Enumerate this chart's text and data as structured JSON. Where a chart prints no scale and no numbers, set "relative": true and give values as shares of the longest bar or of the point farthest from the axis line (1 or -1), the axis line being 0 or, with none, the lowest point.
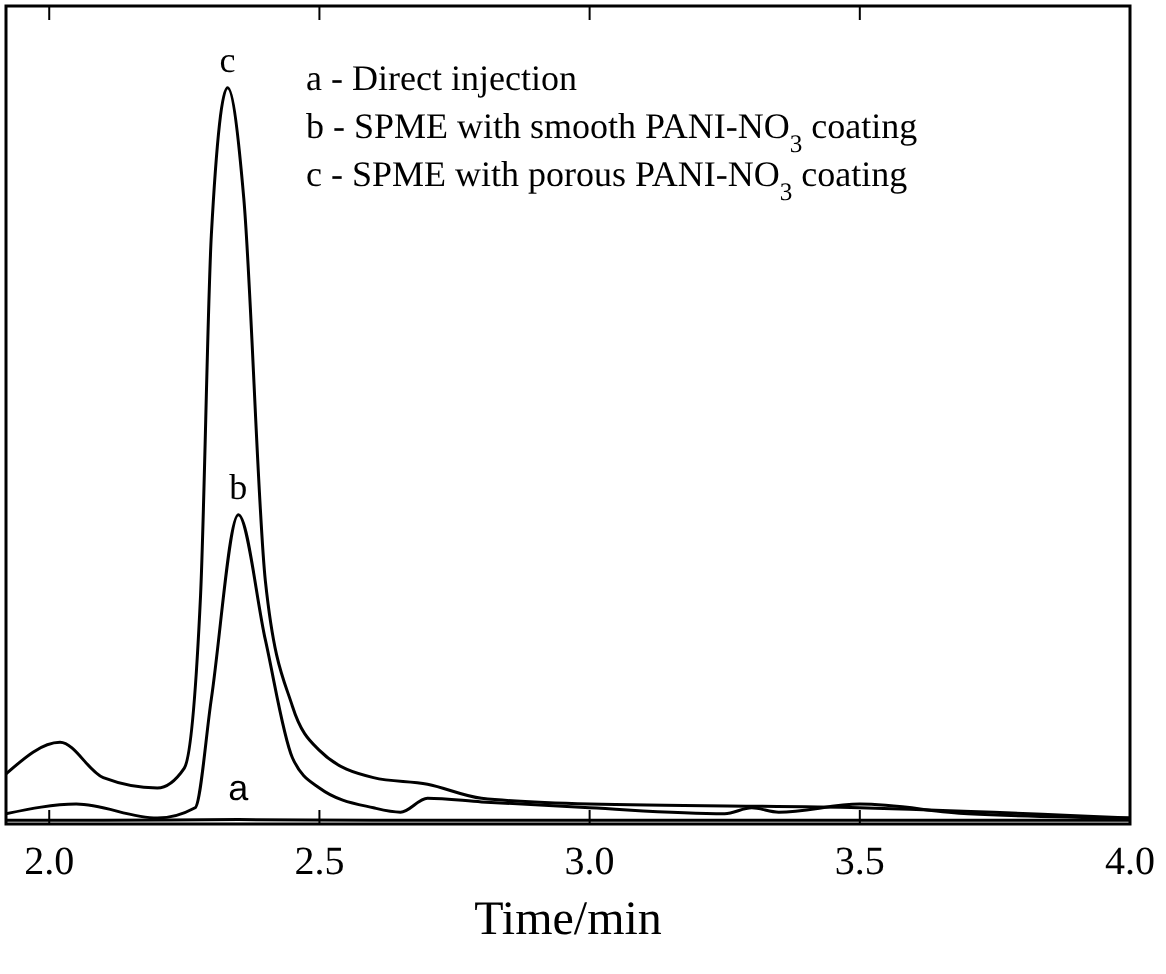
{
  "chart_data": {
    "type": "line",
    "relative": true,
    "xlabel": "Time/min",
    "xlim": [
      1.92,
      4.0
    ],
    "xticks": [
      {
        "value": 2,
        "label": "2.0"
      },
      {
        "value": 2.5,
        "label": "2.5"
      },
      {
        "value": 3,
        "label": "3.0"
      },
      {
        "value": 3.5,
        "label": "3.5"
      },
      {
        "value": 4,
        "label": "4.0"
      }
    ],
    "marker": "none",
    "line_style": "solid",
    "series": [
      {
        "name": "a",
        "color": "#000000",
        "x": [
          1.92,
          2.1,
          2.35,
          2.6,
          3.0,
          3.5,
          4.0
        ],
        "values": [
          0.005,
          0.005,
          0.006,
          0.005,
          0.005,
          0.005,
          0.005
        ]
      },
      {
        "name": "b",
        "color": "#000000",
        "x": [
          1.92,
          2.05,
          2.2,
          2.27,
          2.3,
          2.35,
          2.4,
          2.45,
          2.5,
          2.6,
          2.65,
          2.7,
          2.8,
          3.0,
          3.25,
          3.3,
          3.35,
          3.5,
          3.7,
          4.0
        ],
        "values": [
          0.014,
          0.027,
          0.008,
          0.022,
          0.17,
          0.42,
          0.25,
          0.09,
          0.049,
          0.022,
          0.016,
          0.035,
          0.03,
          0.022,
          0.014,
          0.022,
          0.016,
          0.027,
          0.014,
          0.008
        ]
      },
      {
        "name": "c",
        "color": "#000000",
        "x": [
          1.92,
          2.02,
          2.1,
          2.2,
          2.25,
          2.28,
          2.3,
          2.33,
          2.36,
          2.4,
          2.45,
          2.5,
          2.6,
          2.7,
          2.8,
          3.0,
          3.5,
          4.0
        ],
        "values": [
          0.068,
          0.111,
          0.063,
          0.049,
          0.076,
          0.31,
          0.8,
          1,
          0.85,
          0.33,
          0.16,
          0.1,
          0.063,
          0.054,
          0.035,
          0.027,
          0.022,
          0.008
        ]
      }
    ],
    "annotations": [
      "a - Direct injection",
      "b - SPME with smooth PANI-NO$_{3}$ coating",
      "c - SPME with porous PANI-NO$_{3}$ coating"
    ]
  }
}
